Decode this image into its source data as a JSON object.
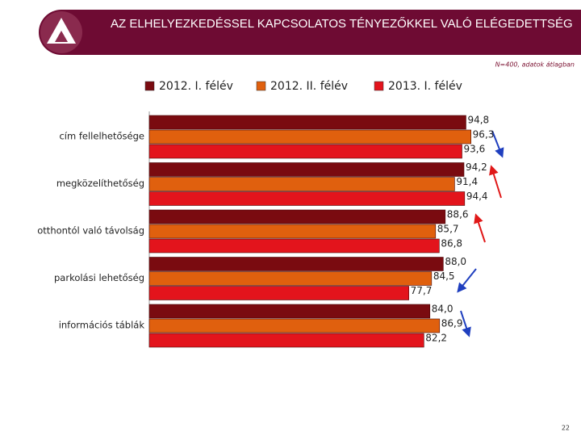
{
  "chart_data": {
    "type": "hbar",
    "title": "AZ ELHELYEZKEDÉSSEL KAPCSOLATOS TÉNYEZŐKKEL VALÓ ELÉGEDETTSÉG",
    "subtitle": "N=400, adatok átlagban",
    "page_number": "22",
    "categories": [
      "cím fellelhetősége",
      "megközelíthetőség",
      "otthontól való távolság",
      "parkolási lehetőség",
      "információs táblák"
    ],
    "series": [
      {
        "name": "2012. I. félév",
        "color": "#7a0b10",
        "values": [
          94.8,
          94.2,
          88.6,
          88.0,
          84.0
        ],
        "value_labels": [
          "94,8",
          "94,2",
          "88,6",
          "88,0",
          "84,0"
        ]
      },
      {
        "name": "2012. II. félév",
        "color": "#e0600e",
        "values": [
          96.3,
          91.4,
          85.7,
          84.5,
          86.9
        ],
        "value_labels": [
          "96,3",
          "91,4",
          "85,7",
          "84,5",
          "86,9"
        ]
      },
      {
        "name": "2013. I. félév",
        "color": "#e3141c",
        "values": [
          93.6,
          94.4,
          86.8,
          77.7,
          82.2
        ],
        "value_labels": [
          "93,6",
          "94,4",
          "86,8",
          "77,7",
          "82,2"
        ]
      }
    ],
    "xlim": [
      0,
      100
    ]
  }
}
